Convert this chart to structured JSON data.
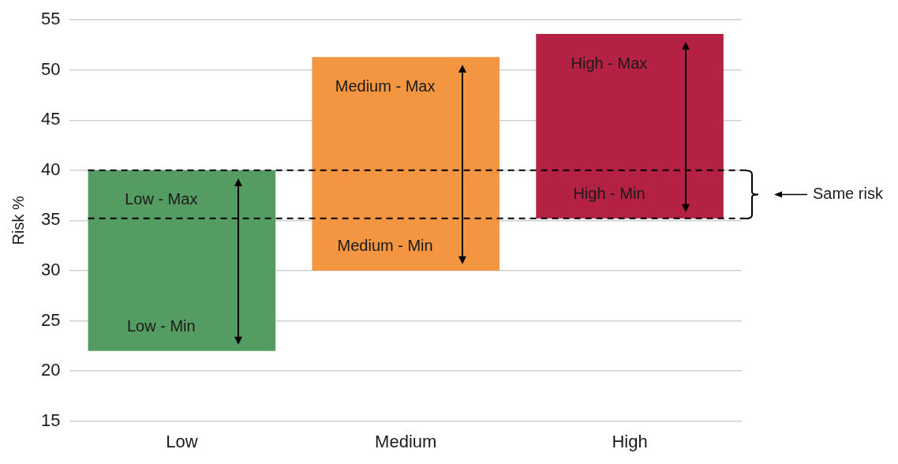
{
  "chart_data": {
    "type": "bar",
    "ylabel": "Risk %",
    "categories": [
      "Low",
      "Medium",
      "High"
    ],
    "base": [
      22,
      30,
      35.2
    ],
    "values": [
      18,
      21.3,
      18.4
    ],
    "colors": [
      "#559c63",
      "#f39541",
      "#b42143"
    ],
    "ylim": [
      15,
      55
    ],
    "yticks": [
      15,
      20,
      25,
      30,
      35,
      40,
      45,
      50,
      55
    ],
    "grid": "y",
    "legend": false,
    "ref_lines": [
      {
        "axis": "y",
        "value": 40,
        "color": "#000000",
        "line_style": "dashed"
      },
      {
        "axis": "y",
        "value": 35.2,
        "color": "#000000",
        "line_style": "dashed"
      }
    ],
    "annotations": [
      "Low - Max",
      "Low - Min",
      "Medium - Max",
      "Medium - Min",
      "High - Max",
      "High - Min",
      "Same risk"
    ]
  }
}
